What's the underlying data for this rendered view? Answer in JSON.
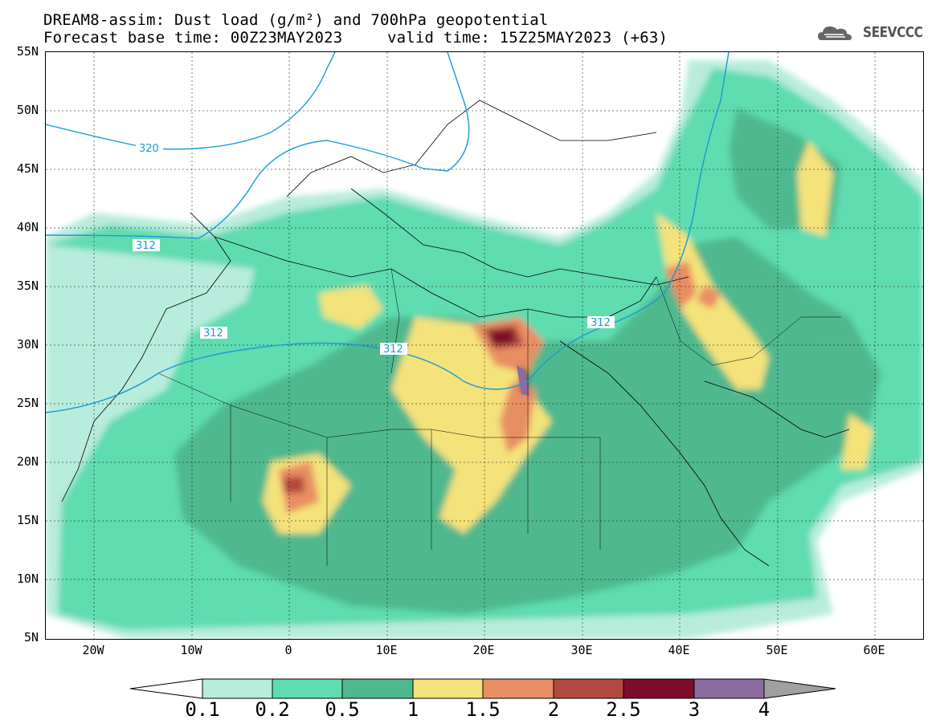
{
  "title": {
    "line1": "DREAM8-assim: Dust load (g/m²) and 700hPa geopotential",
    "line2_left": "Forecast base time: 00Z23MAY2023",
    "line2_right": "valid time: 15Z25MAY2023 (+63)"
  },
  "logo": {
    "text": "SEEVCCC",
    "icon": "cloud-icon"
  },
  "axes": {
    "y_ticks": [
      "55N",
      "50N",
      "45N",
      "40N",
      "35N",
      "30N",
      "25N",
      "20N",
      "15N",
      "10N",
      "5N"
    ],
    "x_ticks": [
      "20W",
      "10W",
      "0",
      "10E",
      "20E",
      "30E",
      "40E",
      "50E",
      "60E"
    ]
  },
  "contours": {
    "labels": [
      "320",
      "312",
      "312",
      "312",
      "312"
    ]
  },
  "colorbar": {
    "labels": [
      "0.1",
      "0.2",
      "0.5",
      "1",
      "1.5",
      "2",
      "2.5",
      "3",
      "4"
    ],
    "colors": [
      "#ffffff",
      "#b8ecdc",
      "#5fdcb0",
      "#4fb88e",
      "#f4e27a",
      "#e88e64",
      "#b14a3c",
      "#7d0d2a",
      "#8c6ba0",
      "#a0a0a0"
    ]
  }
}
